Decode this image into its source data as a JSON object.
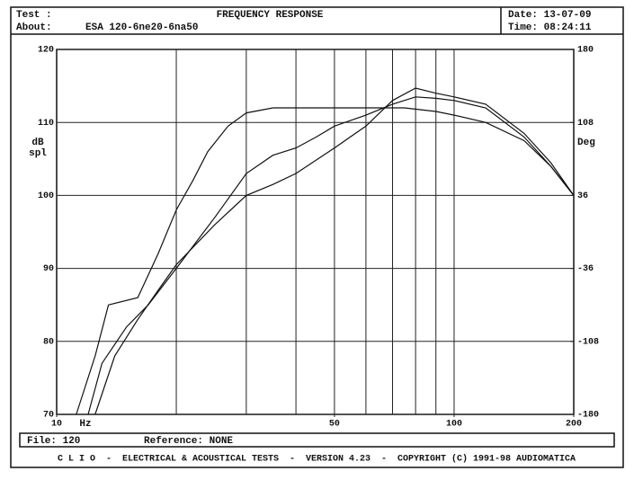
{
  "header": {
    "test_label": "Test :",
    "about_label": "About:",
    "about": "ESA 120-6ne20-6na50",
    "date": "Date: 13-07-09",
    "time": "Time: 08:24:11"
  },
  "chart_data": {
    "type": "line",
    "title": "FREQUENCY RESPONSE",
    "xlabel": "Hz",
    "ylabel_lines": [
      "dB",
      "spl"
    ],
    "y2label": "Deg",
    "log_x": true,
    "grid": true,
    "xlim": [
      10,
      200
    ],
    "xticks": [
      10,
      50,
      100,
      200
    ],
    "xgrid": [
      20,
      30,
      40,
      50,
      60,
      70,
      80,
      90,
      100
    ],
    "ylim": [
      70,
      120
    ],
    "yticks": [
      70,
      80,
      90,
      100,
      110,
      120
    ],
    "y2lim": [
      -180,
      180
    ],
    "y2ticks": [
      -180,
      -108,
      -36,
      36,
      108,
      180
    ],
    "series": [
      {
        "color": "#111111",
        "x": [
          11.2,
          12.5,
          13.5,
          16,
          18,
          20,
          22,
          24,
          27,
          30,
          35,
          45,
          60,
          75,
          90,
          100,
          120,
          150,
          175,
          200
        ],
        "values": [
          70,
          78,
          85,
          86,
          92,
          98,
          102,
          106,
          109.5,
          111.3,
          112,
          112,
          112,
          112,
          111.5,
          111,
          110,
          107.5,
          104,
          100
        ]
      },
      {
        "color": "#111111",
        "x": [
          12,
          13,
          15,
          17,
          20,
          25,
          30,
          35,
          40,
          45,
          50,
          60,
          70,
          80,
          90,
          100,
          120,
          150,
          175,
          200
        ],
        "values": [
          70,
          77,
          82,
          85,
          90,
          97,
          103,
          105.5,
          106.5,
          108,
          109.5,
          111,
          112.5,
          113.5,
          113.3,
          113,
          112,
          108,
          104,
          100
        ]
      },
      {
        "color": "#111111",
        "x": [
          12.5,
          14,
          16,
          18,
          20,
          25,
          30,
          35,
          40,
          50,
          60,
          70,
          80,
          90,
          100,
          120,
          150,
          175,
          200
        ],
        "values": [
          70,
          78,
          83,
          87,
          90.5,
          96,
          100,
          101.5,
          103,
          106.5,
          109.5,
          113,
          114.7,
          114,
          113.5,
          112.5,
          108.5,
          104.5,
          100
        ]
      }
    ]
  },
  "footer": {
    "file": "File: 120",
    "reference": "Reference: NONE",
    "banner": "C L I O  -  ELECTRICAL & ACOUSTICAL TESTS  -  VERSION 4.23  -  COPYRIGHT (C) 1991-98 AUDIOMATICA"
  }
}
